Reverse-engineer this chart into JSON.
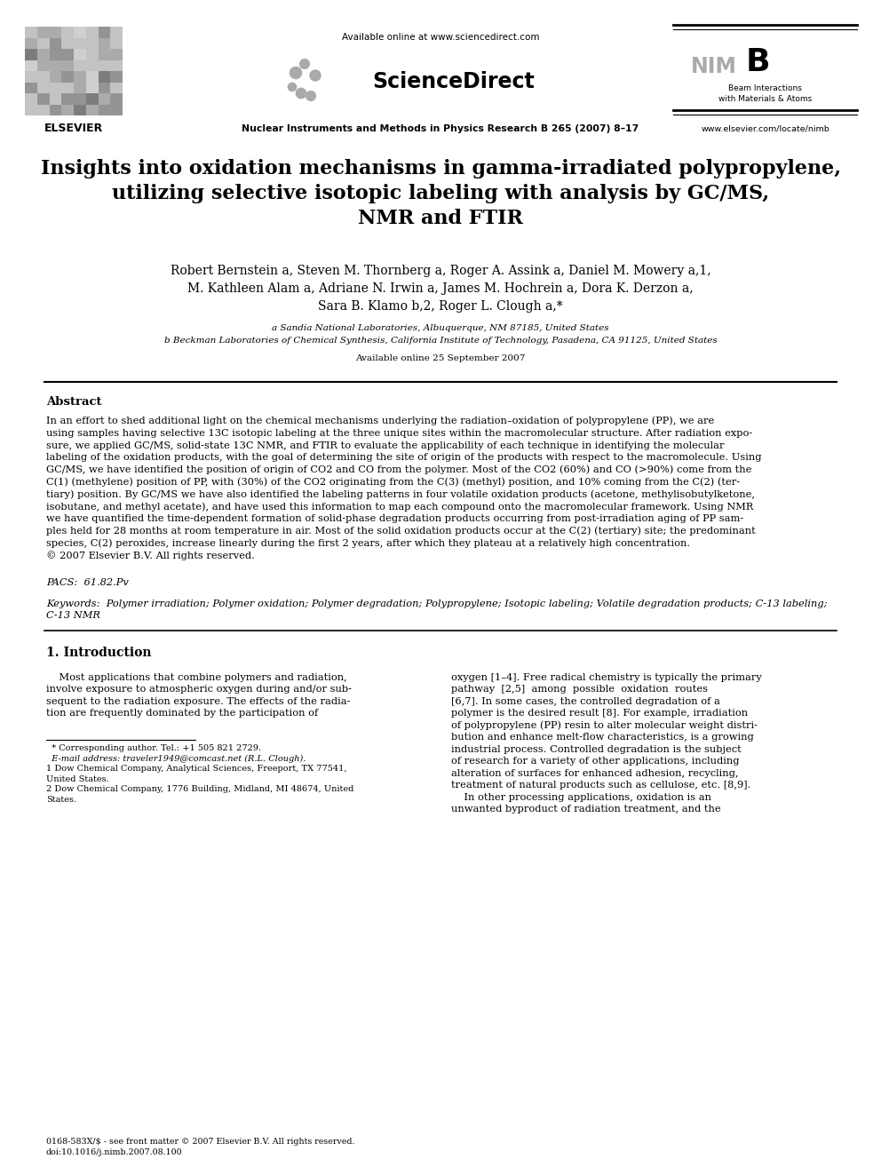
{
  "bg_color": "#ffffff",
  "available_online_text": "Available online at www.sciencedirect.com",
  "journal_text": "Nuclear Instruments and Methods in Physics Research B 265 (2007) 8–17",
  "elsevier_text": "ELSEVIER",
  "nimb_line1": "NIM",
  "nimb_line2": "B",
  "nimb_sub1": "Beam Interactions",
  "nimb_sub2": "with Materials & Atoms",
  "website_text": "www.elsevier.com/locate/nimb",
  "title_line1": "Insights into oxidation mechanisms in gamma-irradiated polypropylene,",
  "title_line2": "utilizing selective isotopic labeling with analysis by GC/MS,",
  "title_line3": "NMR and FTIR",
  "authors_line1": "Robert Bernstein a, Steven M. Thornberg a, Roger A. Assink a, Daniel M. Mowery a,1,",
  "authors_line2": "M. Kathleen Alam a, Adriane N. Irwin a, James M. Hochrein a, Dora K. Derzon a,",
  "authors_line3": "Sara B. Klamo b,2, Roger L. Clough a,*",
  "affil_a": "a Sandia National Laboratories, Albuquerque, NM 87185, United States",
  "affil_b": "b Beckman Laboratories of Chemical Synthesis, California Institute of Technology, Pasadena, CA 91125, United States",
  "available_online_date": "Available online 25 September 2007",
  "abstract_title": "Abstract",
  "abstract_lines": [
    "In an effort to shed additional light on the chemical mechanisms underlying the radiation–oxidation of polypropylene (PP), we are",
    "using samples having selective 13C isotopic labeling at the three unique sites within the macromolecular structure. After radiation expo-",
    "sure, we applied GC/MS, solid-state 13C NMR, and FTIR to evaluate the applicability of each technique in identifying the molecular",
    "labeling of the oxidation products, with the goal of determining the site of origin of the products with respect to the macromolecule. Using",
    "GC/MS, we have identified the position of origin of CO2 and CO from the polymer. Most of the CO2 (60%) and CO (>90%) come from the",
    "C(1) (methylene) position of PP, with (30%) of the CO2 originating from the C(3) (methyl) position, and 10% coming from the C(2) (ter-",
    "tiary) position. By GC/MS we have also identified the labeling patterns in four volatile oxidation products (acetone, methylisobutylketone,",
    "isobutane, and methyl acetate), and have used this information to map each compound onto the macromolecular framework. Using NMR",
    "we have quantified the time-dependent formation of solid-phase degradation products occurring from post-irradiation aging of PP sam-",
    "ples held for 28 months at room temperature in air. Most of the solid oxidation products occur at the C(2) (tertiary) site; the predominant",
    "species, C(2) peroxides, increase linearly during the first 2 years, after which they plateau at a relatively high concentration.",
    "© 2007 Elsevier B.V. All rights reserved."
  ],
  "pacs_text": "PACS:  61.82.Pv",
  "kw_line1": "Keywords:  Polymer irradiation; Polymer oxidation; Polymer degradation; Polypropylene; Isotopic labeling; Volatile degradation products; C-13 labeling;",
  "kw_line2": "C-13 NMR",
  "intro_title": "1. Introduction",
  "intro_col1_lines": [
    "    Most applications that combine polymers and radiation,",
    "involve exposure to atmospheric oxygen during and/or sub-",
    "sequent to the radiation exposure. The effects of the radia-",
    "tion are frequently dominated by the participation of"
  ],
  "intro_col2_lines": [
    "oxygen [1–4]. Free radical chemistry is typically the primary",
    "pathway  [2,5]  among  possible  oxidation  routes",
    "[6,7]. In some cases, the controlled degradation of a",
    "polymer is the desired result [8]. For example, irradiation",
    "of polypropylene (PP) resin to alter molecular weight distri-",
    "bution and enhance melt-flow characteristics, is a growing",
    "industrial process. Controlled degradation is the subject",
    "of research for a variety of other applications, including",
    "alteration of surfaces for enhanced adhesion, recycling,",
    "treatment of natural products such as cellulose, etc. [8,9].",
    "    In other processing applications, oxidation is an",
    "unwanted byproduct of radiation treatment, and the"
  ],
  "fn1": "* Corresponding author. Tel.: +1 505 821 2729.",
  "fn2": "E-mail address: traveler1949@comcast.net (R.L. Clough).",
  "fn3": "1 Dow Chemical Company, Analytical Sciences, Freeport, TX 77541,",
  "fn3b": "United States.",
  "fn4": "2 Dow Chemical Company, 1776 Building, Midland, MI 48674, United",
  "fn4b": "States.",
  "footer1": "0168-583X/$ - see front matter © 2007 Elsevier B.V. All rights reserved.",
  "footer2": "doi:10.1016/j.nimb.2007.08.100"
}
